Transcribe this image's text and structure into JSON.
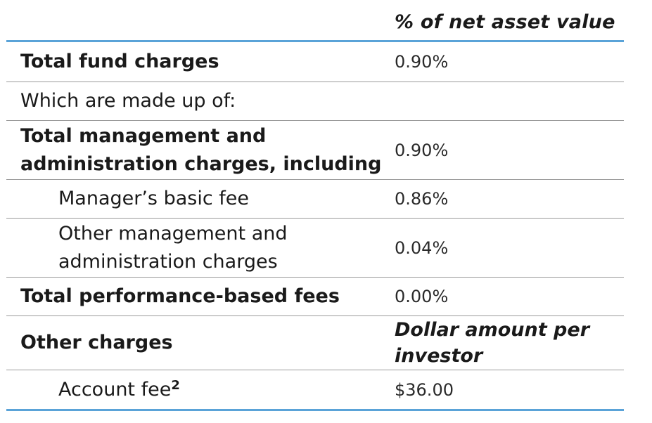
{
  "table": {
    "header": "% of net asset value",
    "rows": [
      {
        "label": "Total fund charges",
        "value": "0.90%"
      },
      {
        "label": "Which are made up of:",
        "value": ""
      },
      {
        "label_line1": "Total management and",
        "label_line2": "administration charges, including",
        "value": "0.90%"
      },
      {
        "label": "Manager’s basic fee",
        "value": "0.86%"
      },
      {
        "label_line1": "Other management and",
        "label_line2": "administration charges",
        "value": "0.04%"
      },
      {
        "label": "Total performance-based fees",
        "value": "0.00%"
      },
      {
        "label": "Other charges",
        "value_line1": "Dollar amount per",
        "value_line2": "investor"
      },
      {
        "label": "Account fee",
        "footnote": "2",
        "value": "$36.00"
      }
    ]
  }
}
